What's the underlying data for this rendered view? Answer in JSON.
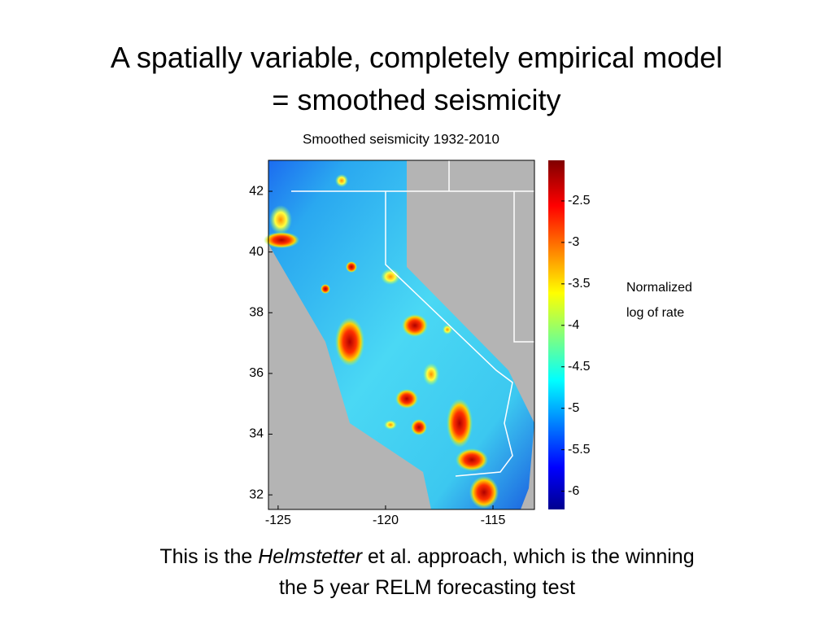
{
  "title": [
    "A spatially variable, completely empirical model",
    "= smoothed seismicity"
  ],
  "figure": {
    "title": "Smoothed seismicity 1932-2010",
    "xlim": [
      -125.45,
      -113.07
    ],
    "xticks": [
      -125,
      -120,
      -115
    ],
    "ylim": [
      31.52,
      43.02
    ],
    "yticks": [
      32,
      34,
      36,
      38,
      40,
      42
    ],
    "colorbar": {
      "lim": [
        -6.22,
        -2.01
      ],
      "ticks": [
        -6,
        -5.5,
        -5,
        -4.5,
        -4,
        -3.5,
        -3,
        -2.5
      ],
      "label": [
        "Normalized",
        "log of rate"
      ]
    }
  },
  "caption": {
    "line1": [
      "This is the ",
      "Helmstetter",
      " et al. approach, which is the winning"
    ],
    "line2": "the 5 year RELM forecasting test"
  }
}
